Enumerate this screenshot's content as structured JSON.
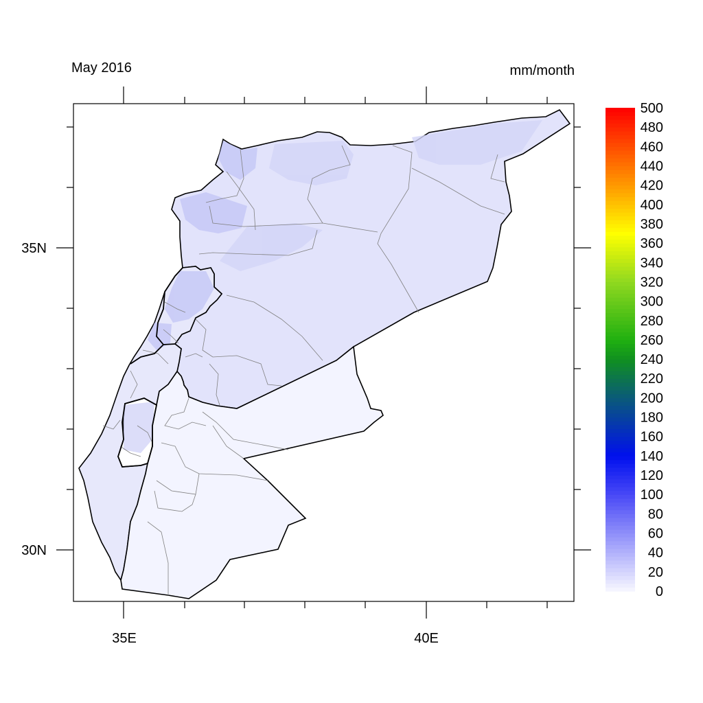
{
  "title_left": "May 2016",
  "title_right": "mm/month",
  "x_axis": {
    "ticks": [
      {
        "value": 35,
        "label": "35E"
      },
      {
        "value": 40,
        "label": "40E"
      }
    ]
  },
  "y_axis": {
    "ticks": [
      {
        "value": 35,
        "label": "35N"
      },
      {
        "value": 30,
        "label": "30N"
      }
    ]
  },
  "colorbar": {
    "min": 0,
    "max": 500,
    "step": 20,
    "labels": [
      "0",
      "20",
      "40",
      "60",
      "80",
      "100",
      "120",
      "140",
      "160",
      "180",
      "200",
      "220",
      "240",
      "260",
      "280",
      "300",
      "320",
      "340",
      "360",
      "380",
      "400",
      "420",
      "440",
      "460",
      "480",
      "500"
    ],
    "stops": [
      {
        "value": 0,
        "color": "#f7f7ff"
      },
      {
        "value": 100,
        "color": "#4848f6"
      },
      {
        "value": 140,
        "color": "#0010ee"
      },
      {
        "value": 200,
        "color": "#0a5a78"
      },
      {
        "value": 240,
        "color": "#109020"
      },
      {
        "value": 260,
        "color": "#20b010"
      },
      {
        "value": 320,
        "color": "#90d820"
      },
      {
        "value": 370,
        "color": "#ffff00"
      },
      {
        "value": 420,
        "color": "#ff9900"
      },
      {
        "value": 500,
        "color": "#ff0000"
      }
    ]
  },
  "colors": {
    "syria": "#e2e3fb",
    "levant": "#e7e8fb",
    "jordan": "#f3f4ff",
    "wet_patch": "#c2c5f6",
    "boundary": "#000000",
    "admin": "#808080"
  }
}
